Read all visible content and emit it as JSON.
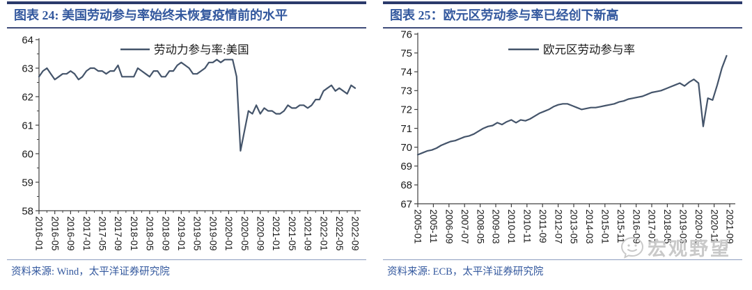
{
  "figures": [
    {
      "source": "资料来源:  Wind，太平洋证券研究院"
    },
    {
      "source": "资料来源:  ECB，太平洋证券研究院"
    }
  ],
  "watermark": {
    "icon": "chat-bubble-face-icon",
    "text": "宏观野望"
  },
  "colors": {
    "series_line": "#44546A",
    "title_text": "#33589E",
    "title_bar": "#2B3A6B",
    "title_underline": "#3D4A78",
    "source_rule": "#8C9CBE",
    "source_text": "#33589E",
    "axis": "#404040",
    "tick_text": "#1a1a1a",
    "watermark": "#c9c9c9"
  },
  "chart_data": [
    {
      "type": "line",
      "title": "图表 24: 美国劳动参与率始终未恢复疫情前的水平",
      "legend": [
        "劳动力参与率:美国"
      ],
      "legend_position": "top-center",
      "grid": false,
      "x_unit": "month",
      "x_start": "2016-01",
      "x_end": "2022-09",
      "x_tick_labels": [
        "2016-01",
        "2016-05",
        "2016-09",
        "2017-01",
        "2017-05",
        "2017-09",
        "2018-01",
        "2018-05",
        "2018-09",
        "2019-01",
        "2019-05",
        "2019-09",
        "2020-01",
        "2020-05",
        "2020-09",
        "2021-01",
        "2021-05",
        "2021-09",
        "2022-01",
        "2022-05",
        "2022-09"
      ],
      "ylim": [
        58,
        64
      ],
      "ytick_step": 1,
      "series": [
        {
          "name": "劳动力参与率:美国",
          "values": [
            62.7,
            62.9,
            63.0,
            62.8,
            62.6,
            62.7,
            62.8,
            62.8,
            62.9,
            62.8,
            62.6,
            62.7,
            62.9,
            63.0,
            63.0,
            62.9,
            62.9,
            62.8,
            62.9,
            62.9,
            63.1,
            62.7,
            62.7,
            62.7,
            62.7,
            63.0,
            62.9,
            62.8,
            62.7,
            62.9,
            62.9,
            62.7,
            62.7,
            62.9,
            62.9,
            63.1,
            63.2,
            63.1,
            63.0,
            62.8,
            62.8,
            62.9,
            63.0,
            63.2,
            63.2,
            63.3,
            63.2,
            63.3,
            63.3,
            63.3,
            62.7,
            60.1,
            60.8,
            61.5,
            61.4,
            61.7,
            61.4,
            61.6,
            61.5,
            61.5,
            61.4,
            61.4,
            61.5,
            61.7,
            61.6,
            61.6,
            61.7,
            61.7,
            61.6,
            61.7,
            61.9,
            61.9,
            62.2,
            62.3,
            62.4,
            62.2,
            62.3,
            62.2,
            62.1,
            62.4,
            62.3
          ]
        }
      ]
    },
    {
      "type": "line",
      "title": "图表 25：欧元区劳动参与率已经创下新高",
      "legend": [
        "欧元区劳动参与率"
      ],
      "legend_position": "top-center",
      "grid": false,
      "x_unit": "quarter",
      "x_start": "2005-Q1",
      "x_end": "2021-Q3",
      "x_tick_labels": [
        "2005-01",
        "2005-11",
        "2006-09",
        "2007-07",
        "2008-05",
        "2009-03",
        "2010-01",
        "2010-11",
        "2011-09",
        "2012-07",
        "2013-05",
        "2014-03",
        "2015-01",
        "2015-11",
        "2016-09",
        "2017-07",
        "2018-05",
        "2019-03",
        "2020-01",
        "2020-11",
        "2021-09"
      ],
      "ylim": [
        67,
        76
      ],
      "ytick_step": 1,
      "series": [
        {
          "name": "欧元区劳动参与率",
          "values": [
            69.6,
            69.7,
            69.8,
            69.85,
            69.95,
            70.1,
            70.2,
            70.3,
            70.35,
            70.45,
            70.55,
            70.6,
            70.7,
            70.85,
            71.0,
            71.1,
            71.15,
            71.3,
            71.2,
            71.35,
            71.45,
            71.3,
            71.45,
            71.4,
            71.5,
            71.65,
            71.8,
            71.9,
            72.0,
            72.15,
            72.25,
            72.3,
            72.3,
            72.2,
            72.1,
            72.0,
            72.05,
            72.1,
            72.1,
            72.15,
            72.2,
            72.25,
            72.3,
            72.4,
            72.45,
            72.55,
            72.6,
            72.65,
            72.7,
            72.8,
            72.9,
            72.95,
            73.0,
            73.1,
            73.2,
            73.3,
            73.4,
            73.25,
            73.45,
            73.6,
            73.4,
            71.1,
            72.6,
            72.5,
            73.3,
            74.2,
            74.85
          ]
        }
      ]
    }
  ]
}
